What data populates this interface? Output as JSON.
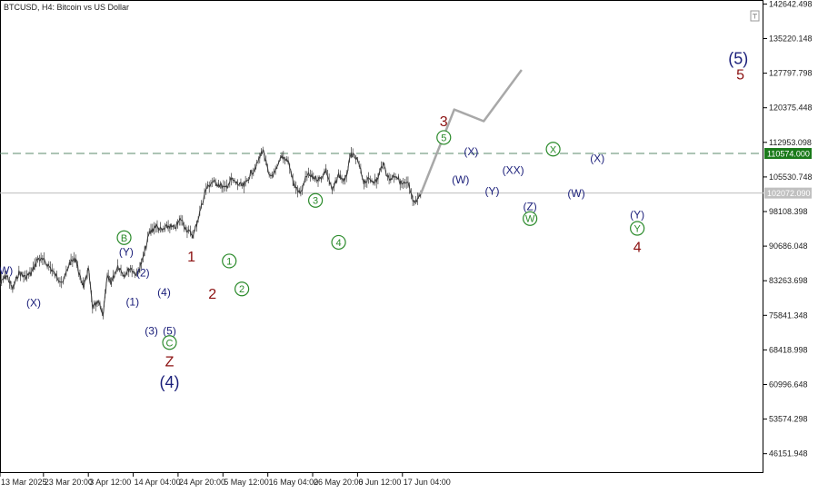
{
  "header": {
    "symbol_label": "BTCUSD, H4:  Bitcoin vs US Dollar"
  },
  "price_tags": {
    "resistance": {
      "label": "110574.000",
      "bg": "#1a7a1a",
      "fg": "#ffffff"
    },
    "current": {
      "label": "102072.090",
      "bg": "#c0c0c0",
      "fg": "#ffffff"
    }
  },
  "colors": {
    "candles": "#3a3a3a",
    "forecast": "#a8a8a8",
    "resistance_line": "#5b8a6b",
    "current_line": "#bdbdbd",
    "wave_blue": "#1b1f7a",
    "wave_red": "#8b1010",
    "wave_green": "#2a8a2a"
  },
  "chart_data": {
    "type": "line",
    "title": "BTCUSD, H4:  Bitcoin vs US Dollar",
    "ylim": [
      42000,
      143500
    ],
    "yticks": [
      "142642.498",
      "135220.148",
      "127797.798",
      "120375.448",
      "112953.098",
      "105530.748",
      "98108.398",
      "90686.048",
      "83263.698",
      "75841.348",
      "68418.998",
      "60996.648",
      "53574.298",
      "46151.948"
    ],
    "ytick_values": [
      142642.498,
      135220.148,
      127797.798,
      120375.448,
      112953.098,
      105530.748,
      98108.398,
      90686.048,
      83263.698,
      75841.348,
      68418.998,
      60996.648,
      53574.298,
      46151.948
    ],
    "xticks": [
      "13 Mar 2025",
      "23 Mar 20:00",
      "3 Apr 12:00",
      "14 Apr 04:00",
      "24 Apr 20:00",
      "5 May 12:00",
      "16 May 04:00",
      "26 May 20:00",
      "6 Jun 12:00",
      "17 Jun 04:00"
    ],
    "xtick_values": [
      0,
      10.33,
      21,
      31.67,
      42.33,
      53,
      63.67,
      74.33,
      85,
      95.67
    ],
    "resistance_level": 110574.0,
    "current_level": 102072.09,
    "price_series": {
      "x": [
        0,
        1.5,
        3,
        4.5,
        6,
        7.5,
        9,
        10.5,
        12,
        13.5,
        15,
        16.5,
        18,
        19,
        20,
        21,
        22,
        23.5,
        24.5,
        25.5,
        26.5,
        28,
        29.5,
        31,
        32.5,
        34,
        35.5,
        37,
        38.5,
        40,
        41.5,
        43,
        44.5,
        46,
        47.5,
        49,
        50.5,
        52,
        53.5,
        55,
        56.5,
        58,
        59.5,
        61,
        62.5,
        64,
        65.5,
        67,
        68.5,
        70,
        71.5,
        73,
        74.5,
        76,
        77.5,
        79,
        80.5,
        82,
        83.5,
        85,
        86.5,
        88,
        89.5,
        91,
        92.5,
        94,
        95.5,
        97,
        98.5,
        100
      ],
      "values": [
        82500,
        84500,
        81500,
        85000,
        84000,
        85000,
        88000,
        87500,
        86000,
        84000,
        83000,
        87000,
        88000,
        84000,
        82000,
        86000,
        77500,
        78500,
        76000,
        84000,
        83000,
        86500,
        84500,
        86000,
        84500,
        88000,
        93500,
        95000,
        94000,
        95000,
        94500,
        96500,
        94000,
        93000,
        98000,
        103000,
        104500,
        104000,
        103000,
        105000,
        104000,
        103500,
        106000,
        108000,
        111500,
        105500,
        106500,
        110000,
        109000,
        103500,
        102000,
        106000,
        105500,
        105000,
        107000,
        102500,
        106000,
        104500,
        110500,
        109000,
        104500,
        105000,
        104500,
        108500,
        105000,
        106000,
        104000,
        104000,
        99500,
        101800
      ]
    },
    "forecast_series": {
      "x": [
        100,
        108,
        115,
        124
      ],
      "values": [
        101800,
        120000,
        117500,
        128500
      ]
    },
    "wave_labels": [
      {
        "text": "(W)",
        "x": 1,
        "y": 85500,
        "style": "blue"
      },
      {
        "text": "(X)",
        "x": 8,
        "y": 78600,
        "style": "blue"
      },
      {
        "text": "B",
        "x": 29.5,
        "y": 92500,
        "style": "green"
      },
      {
        "text": "(Y)",
        "x": 30,
        "y": 89500,
        "style": "blue"
      },
      {
        "text": "(2)",
        "x": 34,
        "y": 85000,
        "style": "blue"
      },
      {
        "text": "(1)",
        "x": 31.5,
        "y": 78800,
        "style": "blue"
      },
      {
        "text": "(4)",
        "x": 39,
        "y": 80800,
        "style": "blue"
      },
      {
        "text": "(3)",
        "x": 36,
        "y": 72500,
        "style": "blue"
      },
      {
        "text": "(5)",
        "x": 40.3,
        "y": 72500,
        "style": "blue"
      },
      {
        "text": "C",
        "x": 40.3,
        "y": 70000,
        "style": "green"
      },
      {
        "text": "Z",
        "x": 40.3,
        "y": 66000,
        "style": "red"
      },
      {
        "text": "(4)",
        "x": 40.3,
        "y": 61500,
        "style": "blue-big"
      },
      {
        "text": "1",
        "x": 45.5,
        "y": 88500,
        "style": "red"
      },
      {
        "text": "2",
        "x": 50.5,
        "y": 80500,
        "style": "red"
      },
      {
        "text": "1",
        "x": 54.5,
        "y": 87500,
        "style": "green"
      },
      {
        "text": "2",
        "x": 57.5,
        "y": 81500,
        "style": "green"
      },
      {
        "text": "3",
        "x": 75,
        "y": 100500,
        "style": "green"
      },
      {
        "text": "4",
        "x": 80.5,
        "y": 91500,
        "style": "green"
      },
      {
        "text": "3",
        "x": 105.5,
        "y": 117500,
        "style": "red"
      },
      {
        "text": "5",
        "x": 105.5,
        "y": 114000,
        "style": "green"
      },
      {
        "text": "(X)",
        "x": 112,
        "y": 111000,
        "style": "blue"
      },
      {
        "text": "(W)",
        "x": 109.5,
        "y": 105000,
        "style": "blue"
      },
      {
        "text": "(XX)",
        "x": 122,
        "y": 107000,
        "style": "blue"
      },
      {
        "text": "(Y)",
        "x": 117,
        "y": 102500,
        "style": "blue"
      },
      {
        "text": "X",
        "x": 131.5,
        "y": 111500,
        "style": "green"
      },
      {
        "text": "(Z)",
        "x": 126,
        "y": 99200,
        "style": "blue"
      },
      {
        "text": "W",
        "x": 126,
        "y": 96600,
        "style": "green"
      },
      {
        "text": "(X)",
        "x": 142,
        "y": 109500,
        "style": "blue"
      },
      {
        "text": "(W)",
        "x": 137,
        "y": 102000,
        "style": "blue"
      },
      {
        "text": "(Y)",
        "x": 151.5,
        "y": 97500,
        "style": "blue"
      },
      {
        "text": "Y",
        "x": 151.5,
        "y": 94500,
        "style": "green"
      },
      {
        "text": "4",
        "x": 151.5,
        "y": 90500,
        "style": "red"
      },
      {
        "text": "5",
        "x": 176,
        "y": 127500,
        "style": "red"
      },
      {
        "text": "(5)",
        "x": 175.5,
        "y": 131000,
        "style": "blue-big"
      }
    ]
  }
}
